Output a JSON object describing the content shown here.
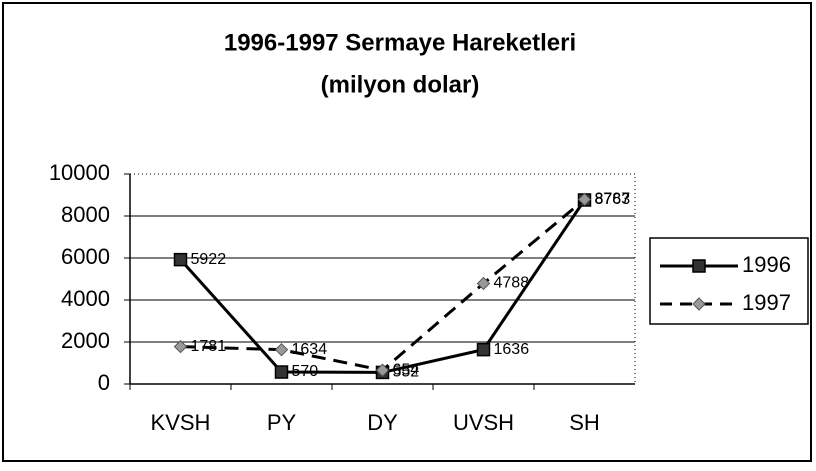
{
  "chart_data": {
    "type": "line",
    "title": "1996-1997 Sermaye Hareketleri",
    "subtitle": "(milyon dolar)",
    "categories": [
      "KVSH",
      "PY",
      "DY",
      "UVSH",
      "SH"
    ],
    "series": [
      {
        "name": "1996",
        "color": "#000000",
        "marker_color": "#333333",
        "dash": false,
        "values": [
          5922,
          570,
          552,
          1636,
          8763
        ]
      },
      {
        "name": "1997",
        "color": "#000000",
        "marker_color": "#999999",
        "dash": true,
        "values": [
          1781,
          1634,
          654,
          4788,
          8787
        ]
      }
    ],
    "ylim": [
      0,
      10000
    ],
    "yticks": [
      0,
      2000,
      4000,
      6000,
      8000,
      10000
    ],
    "grid": true,
    "legend": "right"
  }
}
